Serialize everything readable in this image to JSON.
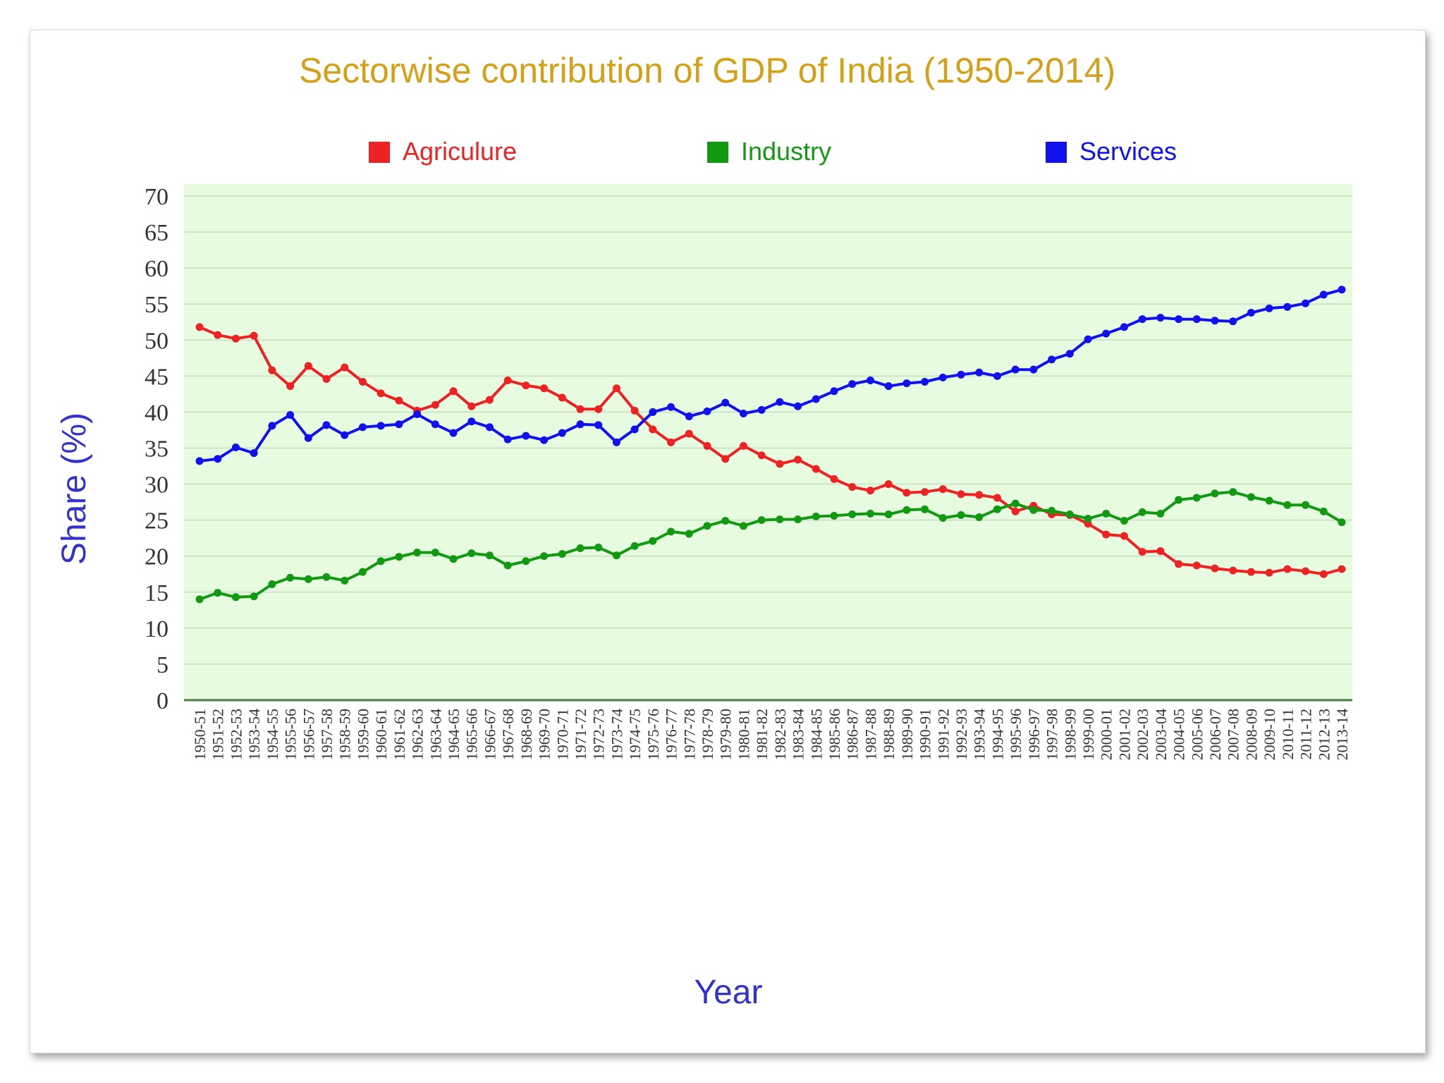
{
  "chart_data": {
    "type": "line",
    "title": "Sectorwise contribution of GDP of India (1950-2014)",
    "xlabel": "Year",
    "ylabel": "Share (%)",
    "ylim": [
      0,
      70
    ],
    "yticks": [
      0,
      5,
      10,
      15,
      20,
      25,
      30,
      35,
      40,
      45,
      50,
      55,
      60,
      65,
      70
    ],
    "grid": true,
    "legend_position": "top",
    "colors": {
      "title": "#d4a017",
      "axis_label": "#3333cc",
      "plot_background": "#e6fbe0",
      "gridline": "#cfe3c8",
      "axis": "#4d7a45"
    },
    "categories": [
      "1950-51",
      "1951-52",
      "1952-53",
      "1953-54",
      "1954-55",
      "1955-56",
      "1956-57",
      "1957-58",
      "1958-59",
      "1959-60",
      "1960-61",
      "1961-62",
      "1962-63",
      "1963-64",
      "1964-65",
      "1965-66",
      "1966-67",
      "1967-68",
      "1968-69",
      "1969-70",
      "1970-71",
      "1971-72",
      "1972-73",
      "1973-74",
      "1974-75",
      "1975-76",
      "1976-77",
      "1977-78",
      "1978-79",
      "1979-80",
      "1980-81",
      "1981-82",
      "1982-83",
      "1983-84",
      "1984-85",
      "1985-86",
      "1986-87",
      "1987-88",
      "1988-89",
      "1989-90",
      "1990-91",
      "1991-92",
      "1992-93",
      "1993-94",
      "1994-95",
      "1995-96",
      "1996-97",
      "1997-98",
      "1998-99",
      "1999-00",
      "2000-01",
      "2001-02",
      "2002-03",
      "2003-04",
      "2004-05",
      "2005-06",
      "2006-07",
      "2007-08",
      "2008-09",
      "2009-10",
      "2010-11",
      "2011-12",
      "2012-13",
      "2013-14"
    ],
    "series": [
      {
        "name": "Agriculure",
        "color": "#ee2222",
        "values": [
          51.8,
          50.7,
          50.2,
          50.6,
          45.8,
          43.6,
          46.4,
          44.6,
          46.2,
          44.2,
          42.6,
          41.6,
          40.2,
          41.0,
          42.9,
          40.8,
          41.7,
          44.4,
          43.7,
          43.3,
          42.0,
          40.4,
          40.4,
          43.3,
          40.2,
          37.6,
          35.8,
          37.0,
          35.3,
          33.5,
          35.3,
          34.0,
          32.8,
          33.4,
          32.1,
          30.7,
          29.6,
          29.1,
          30.0,
          28.8,
          28.9,
          29.3,
          28.6,
          28.5,
          28.1,
          26.2,
          27.0,
          25.8,
          25.7,
          24.5,
          23.0,
          22.8,
          20.6,
          20.7,
          18.9,
          18.7,
          18.3,
          18.0,
          17.8,
          17.7,
          18.2,
          17.9,
          17.5,
          18.2
        ]
      },
      {
        "name": "Industry",
        "color": "#119911",
        "values": [
          14.0,
          14.9,
          14.3,
          14.4,
          16.1,
          17.0,
          16.8,
          17.1,
          16.6,
          17.8,
          19.3,
          19.9,
          20.5,
          20.5,
          19.6,
          20.4,
          20.1,
          18.7,
          19.3,
          20.0,
          20.3,
          21.1,
          21.2,
          20.1,
          21.4,
          22.1,
          23.4,
          23.1,
          24.2,
          24.9,
          24.2,
          25.0,
          25.1,
          25.1,
          25.5,
          25.6,
          25.8,
          25.9,
          25.8,
          26.4,
          26.5,
          25.3,
          25.7,
          25.4,
          26.5,
          27.3,
          26.4,
          26.3,
          25.8,
          25.2,
          25.9,
          24.9,
          26.1,
          25.9,
          27.8,
          28.1,
          28.7,
          28.9,
          28.2,
          27.7,
          27.1,
          27.1,
          26.2,
          24.7
        ]
      },
      {
        "name": "Services",
        "color": "#1111ee",
        "values": [
          33.2,
          33.5,
          35.1,
          34.3,
          38.1,
          39.6,
          36.4,
          38.2,
          36.8,
          37.9,
          38.1,
          38.3,
          39.7,
          38.3,
          37.1,
          38.7,
          37.9,
          36.2,
          36.7,
          36.1,
          37.1,
          38.3,
          38.2,
          35.8,
          37.6,
          40.0,
          40.7,
          39.4,
          40.1,
          41.3,
          39.8,
          40.3,
          41.4,
          40.8,
          41.8,
          42.9,
          43.9,
          44.4,
          43.6,
          44.0,
          44.2,
          44.8,
          45.2,
          45.5,
          45.0,
          45.9,
          45.9,
          47.3,
          48.1,
          50.1,
          50.9,
          51.8,
          52.9,
          53.1,
          52.9,
          52.9,
          52.7,
          52.6,
          53.8,
          54.4,
          54.6,
          55.1,
          56.3,
          57.0
        ]
      }
    ]
  }
}
